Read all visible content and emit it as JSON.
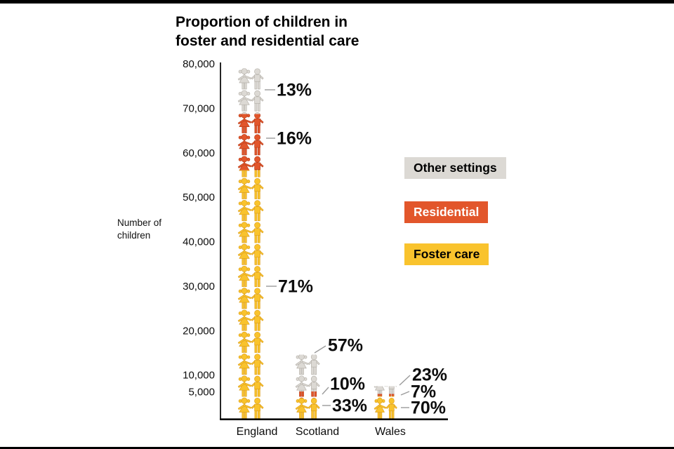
{
  "title": {
    "line1": "Proportion of children in",
    "line2": "foster and residential care"
  },
  "y_axis": {
    "label_line1": "Number of",
    "label_line2": "children",
    "tick_labels": [
      "80,000",
      "70,000",
      "60,000",
      "50,000",
      "40,000",
      "30,000",
      "20,000",
      "10,000",
      "5,000"
    ],
    "tick_values": [
      80000,
      70000,
      60000,
      50000,
      40000,
      30000,
      20000,
      10000,
      5000
    ]
  },
  "x_axis": {
    "categories": [
      "England",
      "Scotland",
      "Wales"
    ]
  },
  "legend": [
    {
      "label": "Other settings",
      "color": "#DCD9D4",
      "text_color": "#000000"
    },
    {
      "label": "Residential",
      "color": "#E2562B",
      "text_color": "#FFFFFF"
    },
    {
      "label": "Foster care",
      "color": "#F9C32D",
      "text_color": "#000000"
    }
  ],
  "colors": {
    "other": "#DCD9D4",
    "other_outline": "#B7B3AC",
    "residential": "#E2562B",
    "residential_outline": "#BC401C",
    "foster": "#F9C32D",
    "foster_outline": "#DFA21F",
    "axis": "#000000",
    "callout": "#9B9B9B",
    "frame": "#000000",
    "text": "#0D0D0D"
  },
  "chart_data": {
    "type": "bar",
    "subtype": "pictogram-stacked-percent",
    "title": "Proportion of children in foster and residential care",
    "ylabel": "Number of children",
    "xlabel": "",
    "categories": [
      "England",
      "Scotland",
      "Wales"
    ],
    "ylim": [
      0,
      80000
    ],
    "yticks": [
      80000,
      70000,
      60000,
      50000,
      40000,
      30000,
      20000,
      10000,
      5000
    ],
    "grid": false,
    "legend_position": "right",
    "totals_children_estimated": [
      79000,
      14600,
      7500
    ],
    "stack_order_top_to_bottom": [
      "Other settings",
      "Residential",
      "Foster care"
    ],
    "series": [
      {
        "name": "Foster care",
        "percent": [
          71,
          33,
          70
        ]
      },
      {
        "name": "Residential",
        "percent": [
          16,
          10,
          7
        ]
      },
      {
        "name": "Other settings",
        "percent": [
          13,
          57,
          23
        ]
      }
    ],
    "percent_labels": [
      {
        "country": "England",
        "segment": "Other settings",
        "text": "13%"
      },
      {
        "country": "England",
        "segment": "Residential",
        "text": "16%"
      },
      {
        "country": "England",
        "segment": "Foster care",
        "text": "71%"
      },
      {
        "country": "Scotland",
        "segment": "Other settings",
        "text": "57%"
      },
      {
        "country": "Scotland",
        "segment": "Residential",
        "text": "10%"
      },
      {
        "country": "Scotland",
        "segment": "Foster care",
        "text": "33%"
      },
      {
        "country": "Wales",
        "segment": "Other settings",
        "text": "23%"
      },
      {
        "country": "Wales",
        "segment": "Residential",
        "text": "7%"
      },
      {
        "country": "Wales",
        "segment": "Foster care",
        "text": "70%"
      }
    ]
  }
}
